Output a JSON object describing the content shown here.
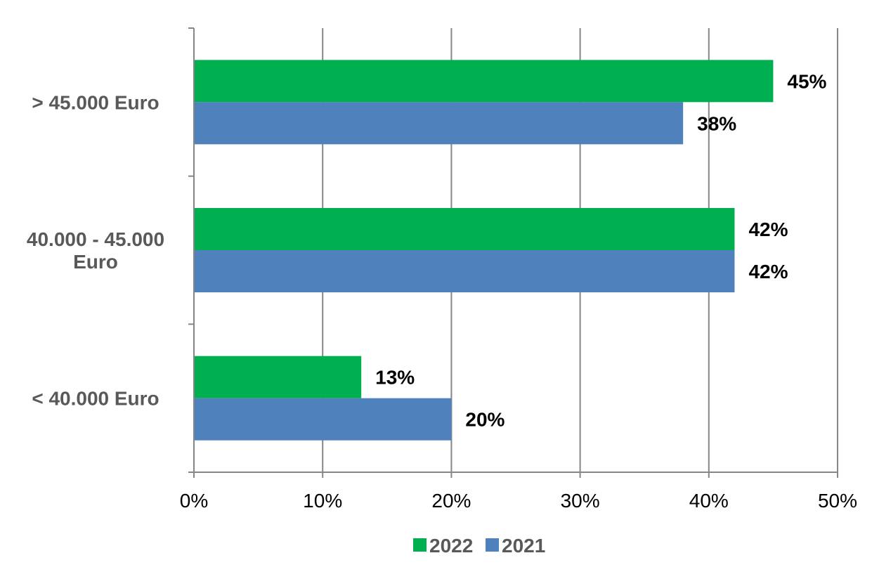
{
  "chart_data": {
    "type": "bar",
    "orientation": "horizontal",
    "categories": [
      "> 45.000 Euro",
      "40.000 - 45.000 Euro",
      "< 40.000 Euro"
    ],
    "category_label_lines": [
      [
        "> 45.000 Euro"
      ],
      [
        "40.000 - 45.000",
        "Euro"
      ],
      [
        "< 40.000 Euro"
      ]
    ],
    "series": [
      {
        "name": "2022",
        "color": "#00b050",
        "values": [
          45,
          42,
          13
        ],
        "data_labels": [
          "45%",
          "42%",
          "13%"
        ]
      },
      {
        "name": "2021",
        "color": "#4f81bd",
        "values": [
          38,
          42,
          20
        ],
        "data_labels": [
          "38%",
          "42%",
          "20%"
        ]
      }
    ],
    "xlim": [
      0,
      50
    ],
    "x_ticks": [
      0,
      10,
      20,
      30,
      40,
      50
    ],
    "x_tick_labels": [
      "0%",
      "10%",
      "20%",
      "30%",
      "40%",
      "50%"
    ],
    "grid": "vertical",
    "legend_position": "bottom",
    "title": "",
    "xlabel": "",
    "ylabel": ""
  }
}
